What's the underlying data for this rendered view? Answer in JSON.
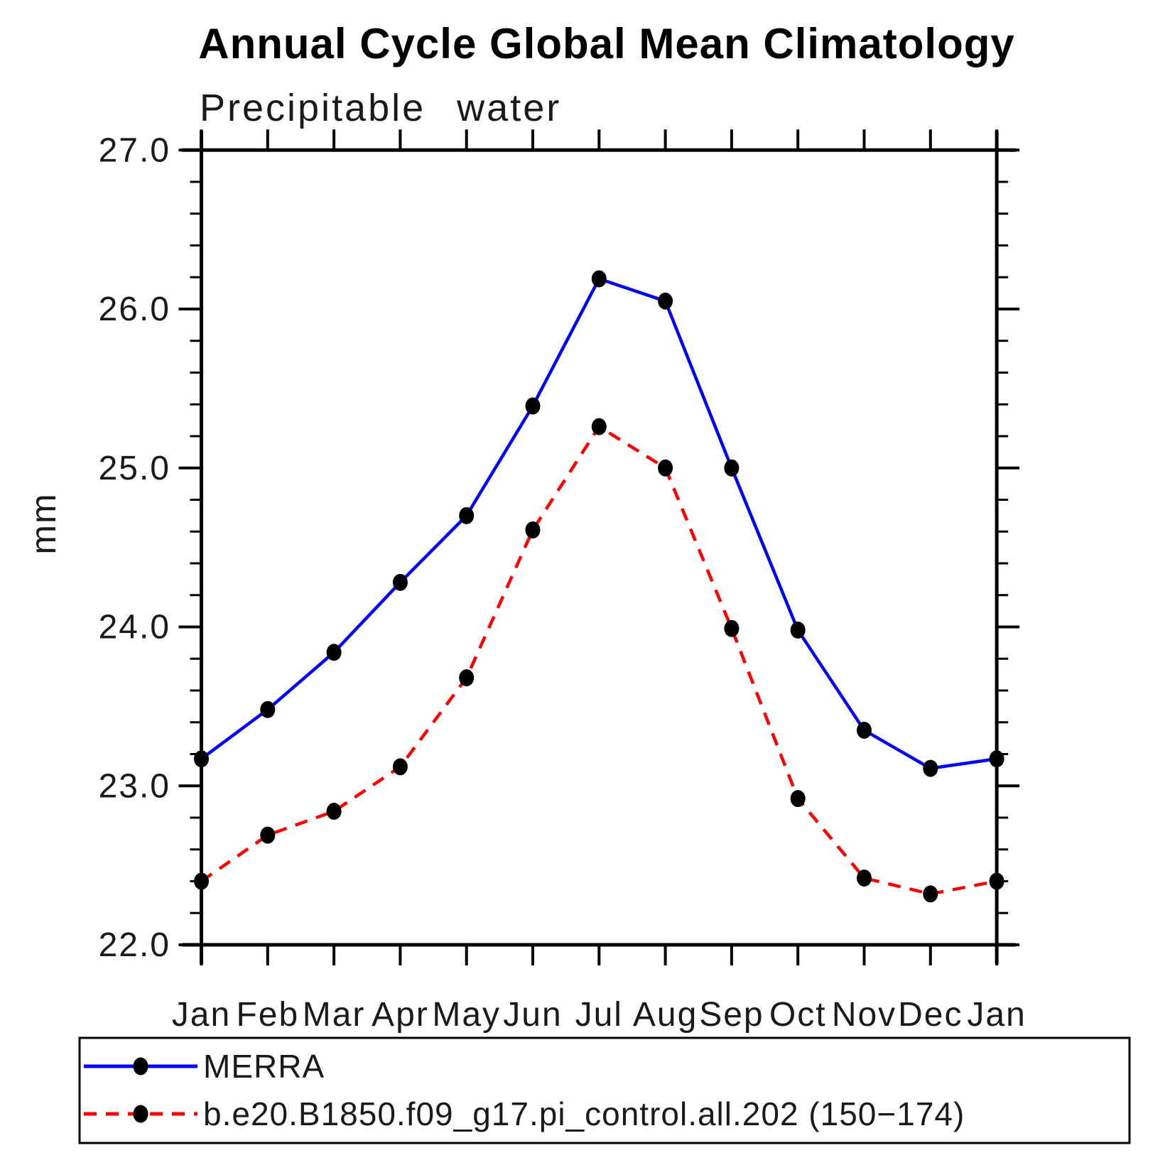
{
  "chart": {
    "title": "Annual Cycle Global Mean Climatology",
    "subtitle": "Precipitable water",
    "ylabel": "mm"
  },
  "chart_data": {
    "type": "line",
    "categories": [
      "Jan",
      "Feb",
      "Mar",
      "Apr",
      "May",
      "Jun",
      "Jul",
      "Aug",
      "Sep",
      "Oct",
      "Nov",
      "Dec",
      "Jan"
    ],
    "xlabel": "",
    "ylabel": "mm",
    "ylim": [
      22.0,
      27.0
    ],
    "ytick_step": 1.0,
    "yminor_step": 0.2,
    "ytick_labels": [
      "22.0",
      "23.0",
      "24.0",
      "25.0",
      "26.0",
      "27.0"
    ],
    "grid": false,
    "legend_position": "bottom",
    "series": [
      {
        "name": "MERRA",
        "color": "#0000ff",
        "line_style": "solid",
        "marker_color": "#000000",
        "values": [
          23.17,
          23.48,
          23.84,
          24.28,
          24.7,
          25.39,
          26.19,
          26.05,
          25.0,
          23.98,
          23.35,
          23.11,
          23.17
        ]
      },
      {
        "name": "b.e20.B1850.f09_g17.pi_control.all.202 (150−174)",
        "color": "#ff0000",
        "line_style": "dashed",
        "marker_color": "#000000",
        "values": [
          22.4,
          22.69,
          22.84,
          23.12,
          23.68,
          24.61,
          25.26,
          25.0,
          23.99,
          22.92,
          22.42,
          22.32,
          22.4
        ]
      }
    ]
  },
  "colors": {
    "axis": "#000000",
    "text": "#1a1a1a",
    "background": "#ffffff",
    "merra_line": "#0000ff",
    "model_line": "#ff0000",
    "marker": "#000000"
  }
}
